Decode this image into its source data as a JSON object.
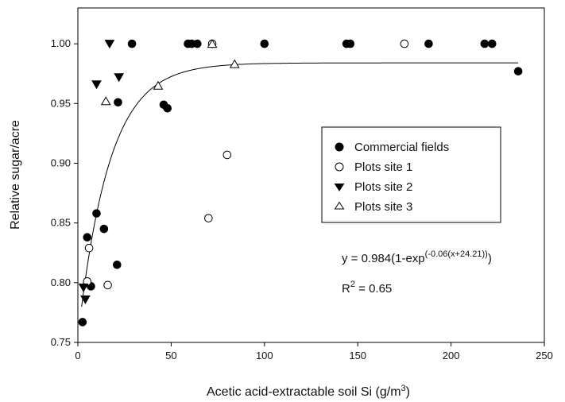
{
  "chart_data": {
    "type": "scatter",
    "xlabel": "Acetic acid-extractable soil Si (g/m",
    "xlabel_sup": "3",
    "xlabel_end": ")",
    "ylabel": "Relative sugar/acre",
    "xlim": [
      0,
      250
    ],
    "ylim": [
      0.75,
      1.03
    ],
    "xticks": [
      0,
      50,
      100,
      150,
      200,
      250
    ],
    "yticks": [
      0.75,
      0.8,
      0.85,
      0.9,
      0.95,
      1.0
    ],
    "xtick_labels": [
      "0",
      "50",
      "100",
      "150",
      "200",
      "250"
    ],
    "ytick_labels": [
      "0.75",
      "0.80",
      "0.85",
      "0.90",
      "0.95",
      "1.00"
    ],
    "grid": false,
    "legend_position": "right-middle",
    "series": [
      {
        "name": "Commercial fields",
        "marker": "filled-circle",
        "points": [
          [
            2.5,
            0.767
          ],
          [
            5,
            0.838
          ],
          [
            7,
            0.797
          ],
          [
            10,
            0.858
          ],
          [
            14,
            0.845
          ],
          [
            21,
            0.815
          ],
          [
            21.5,
            0.951
          ],
          [
            29,
            1.0
          ],
          [
            46,
            0.949
          ],
          [
            48,
            0.946
          ],
          [
            59,
            1.0
          ],
          [
            61,
            1.0
          ],
          [
            64,
            1.0
          ],
          [
            100,
            1.0
          ],
          [
            144,
            1.0
          ],
          [
            146,
            1.0
          ],
          [
            188,
            1.0
          ],
          [
            218,
            1.0
          ],
          [
            222,
            1.0
          ],
          [
            236,
            0.977
          ]
        ]
      },
      {
        "name": "Plots site 1",
        "marker": "open-circle",
        "points": [
          [
            5,
            0.801
          ],
          [
            6,
            0.829
          ],
          [
            16,
            0.798
          ],
          [
            70,
            0.854
          ],
          [
            80,
            0.907
          ],
          [
            72,
            1.0
          ],
          [
            175,
            1.0
          ]
        ]
      },
      {
        "name": "Plots site 2",
        "marker": "filled-triangle-down",
        "points": [
          [
            3,
            0.796
          ],
          [
            4,
            0.786
          ],
          [
            10,
            0.966
          ],
          [
            17,
            1.0
          ],
          [
            22,
            0.972
          ]
        ]
      },
      {
        "name": "Plots site 3",
        "marker": "open-triangle-up",
        "points": [
          [
            15,
            0.952
          ],
          [
            43,
            0.965
          ],
          [
            72,
            1.0
          ],
          [
            84,
            0.983
          ]
        ]
      }
    ],
    "fit": {
      "a": 0.984,
      "k": 0.06,
      "c": 24.21,
      "x_range": [
        2,
        236
      ]
    },
    "equation": {
      "main": "y = 0.984(1-exp",
      "exponent": "(-0.06(x+24.21))",
      "close": ")"
    },
    "r2": {
      "prefix": "R",
      "sup": "2",
      "value": " = 0.65"
    }
  }
}
